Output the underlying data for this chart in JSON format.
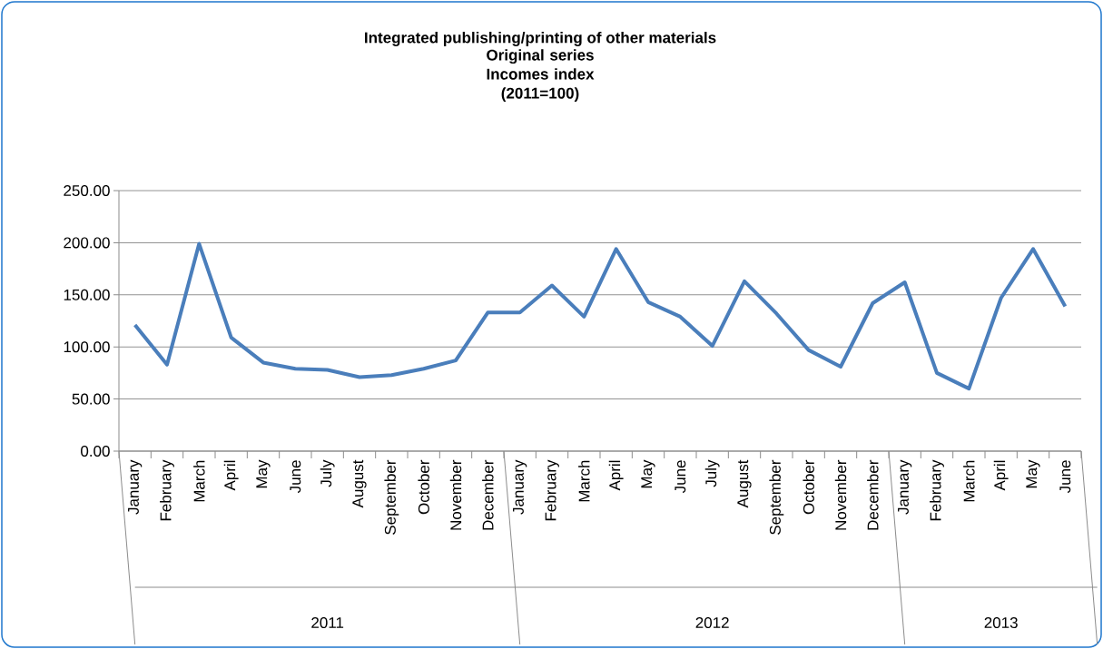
{
  "chart_data": {
    "type": "line",
    "title": "Integrated publishing/printing of other materials",
    "subtitle": "Original series Incomes index (2011=100)",
    "categories": [
      "January",
      "February",
      "March",
      "April",
      "May",
      "June",
      "July",
      "August",
      "September",
      "October",
      "November",
      "December",
      "January",
      "February",
      "March",
      "April",
      "May",
      "June",
      "July",
      "August",
      "September",
      "October",
      "November",
      "December",
      "January",
      "February",
      "March",
      "April",
      "May",
      "June"
    ],
    "values": [
      121,
      83,
      199,
      109,
      85,
      79,
      78,
      71,
      73,
      79,
      87,
      133,
      133,
      159,
      129,
      194,
      143,
      129,
      101,
      163,
      132,
      97,
      81,
      142,
      162,
      75,
      60,
      147,
      194,
      139
    ],
    "color": "#4a7ebb",
    "marker": "none",
    "line_style": "solid",
    "ylim": [
      0,
      250
    ],
    "yticks": [
      {
        "value": 0,
        "label": "0.00"
      },
      {
        "value": 50,
        "label": "50.00"
      },
      {
        "value": 100,
        "label": "100.00"
      },
      {
        "value": 150,
        "label": "150.00"
      },
      {
        "value": 200,
        "label": "200.00"
      },
      {
        "value": 250,
        "label": "250.00"
      }
    ],
    "grid": "y",
    "annotations": [
      "2011",
      "2012",
      "2013"
    ]
  }
}
